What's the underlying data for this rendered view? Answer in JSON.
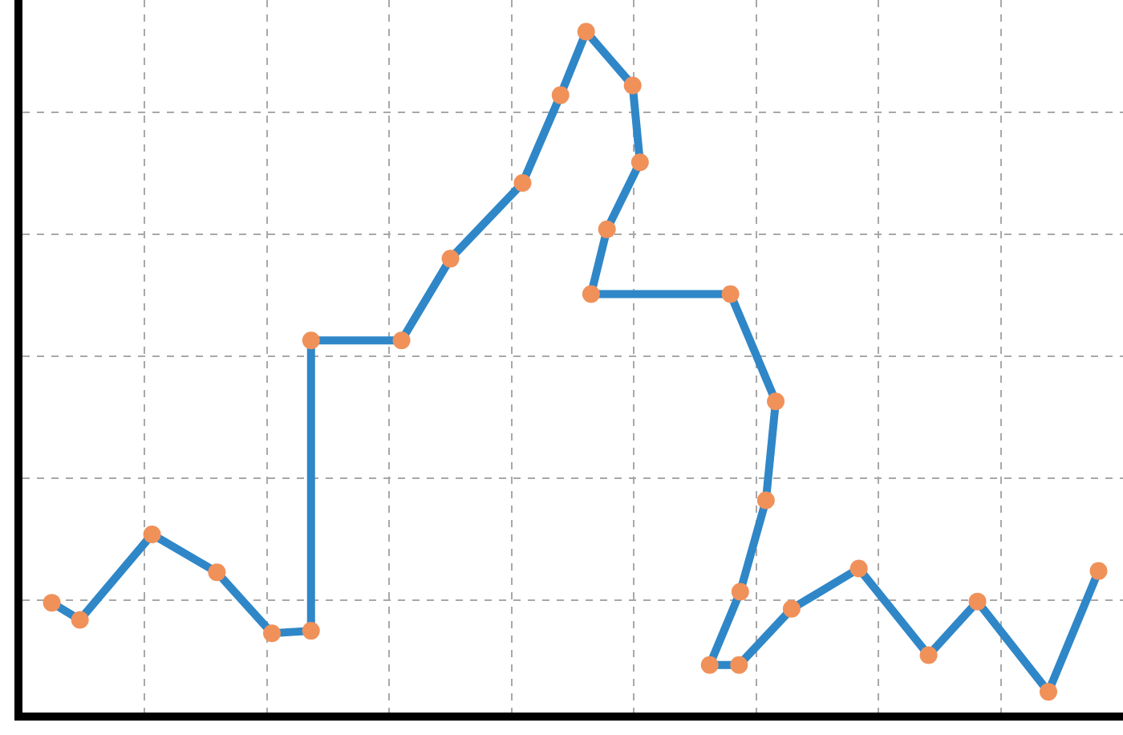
{
  "chart_data": {
    "type": "line",
    "x": [
      0.24,
      0.47,
      1.06,
      1.59,
      2.04,
      2.36,
      2.36,
      3.1,
      3.5,
      4.09,
      4.4,
      4.61,
      4.99,
      5.05,
      4.78,
      4.65,
      5.79,
      6.16,
      6.08,
      5.87,
      5.62,
      5.86,
      6.29,
      6.84,
      7.41,
      7.81,
      8.39,
      8.8
    ],
    "values": [
      0.98,
      0.84,
      1.54,
      1.23,
      0.73,
      0.75,
      3.13,
      3.13,
      3.8,
      4.42,
      5.14,
      5.66,
      5.22,
      4.59,
      4.04,
      3.51,
      3.51,
      2.63,
      1.82,
      1.07,
      0.47,
      0.47,
      0.93,
      1.26,
      0.55,
      0.99,
      0.25,
      1.24
    ],
    "color": "#2f87c8",
    "marker": "circle",
    "line_style": "solid",
    "xlim": [
      0,
      9
    ],
    "xticks": [
      1,
      2,
      3,
      4,
      5,
      6,
      7,
      8
    ],
    "ylim": [
      0.08,
      5.92
    ],
    "yticks": [
      1,
      2,
      3,
      4,
      5
    ],
    "grid": true,
    "tick_labels": false
  }
}
